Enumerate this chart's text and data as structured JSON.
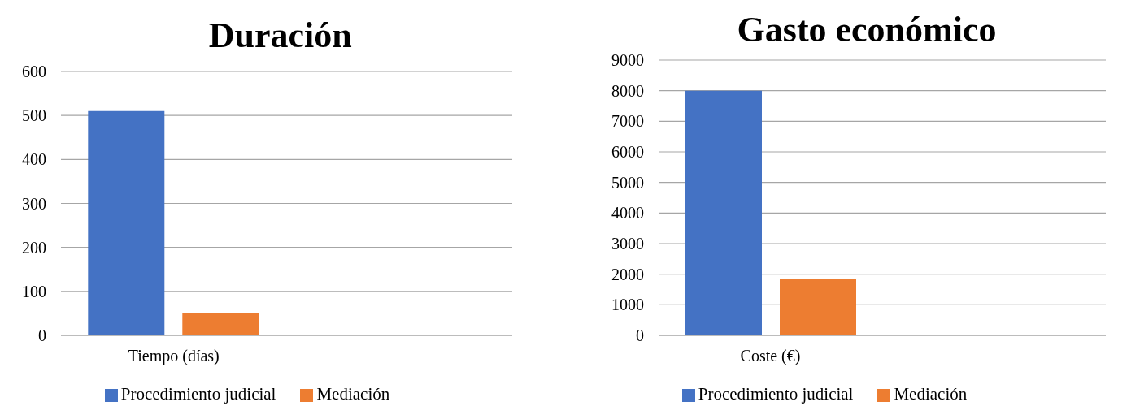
{
  "chart_data": [
    {
      "type": "bar",
      "title": "Duración",
      "categories": [
        "Tiempo (días)",
        null
      ],
      "series": [
        {
          "name": "Procedimiento judicial",
          "color": "#4472c4",
          "values": [
            510,
            null
          ]
        },
        {
          "name": "Mediación",
          "color": "#ed7d31",
          "values": [
            50,
            null
          ]
        }
      ],
      "ylim": [
        0,
        600
      ],
      "yticks": [
        0,
        100,
        200,
        300,
        400,
        500,
        600
      ],
      "grid": "y",
      "legend": "bottom"
    },
    {
      "type": "bar",
      "title": "Gasto económico",
      "categories": [
        "Coste (€)",
        null
      ],
      "series": [
        {
          "name": "Procedimiento judicial",
          "color": "#4472c4",
          "values": [
            8000,
            null
          ]
        },
        {
          "name": "Mediación",
          "color": "#ed7d31",
          "values": [
            1850,
            null
          ]
        }
      ],
      "ylim": [
        0,
        9000
      ],
      "yticks": [
        0,
        1000,
        2000,
        3000,
        4000,
        5000,
        6000,
        7000,
        8000,
        9000
      ],
      "grid": "y",
      "legend": "bottom"
    }
  ]
}
